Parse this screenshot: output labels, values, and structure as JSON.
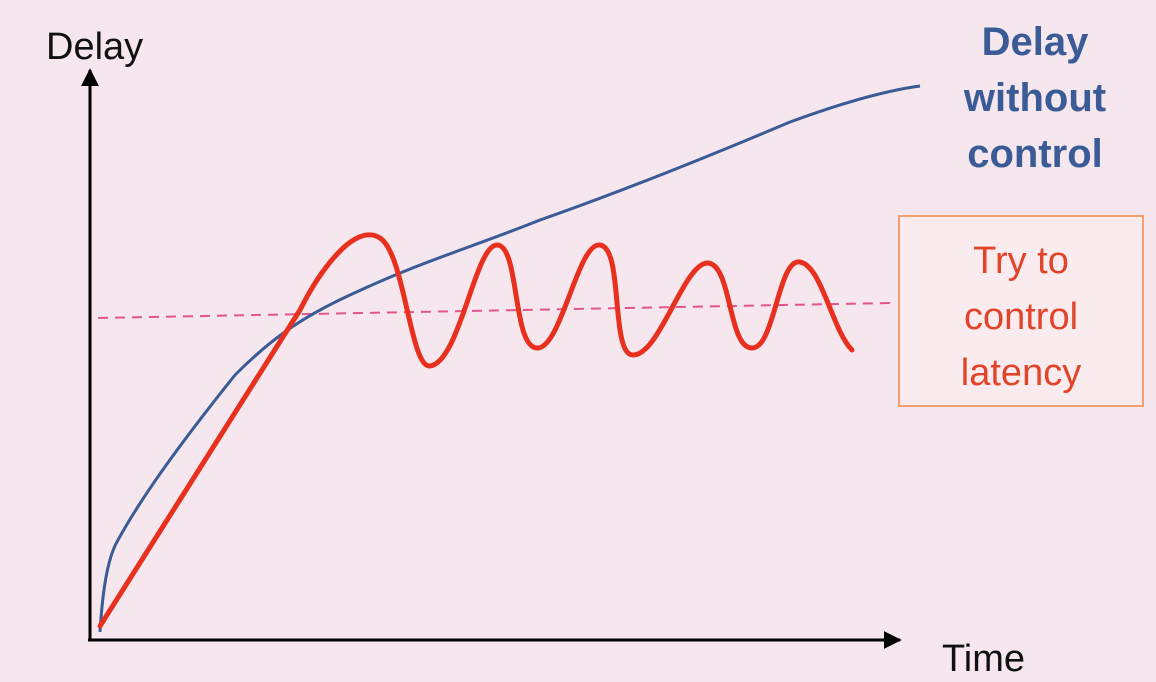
{
  "axes": {
    "y_label": "Delay",
    "x_label": "Time"
  },
  "curves": {
    "without_control": {
      "label_lines": [
        "Delay",
        "without",
        "control"
      ],
      "color": "#3a5b95"
    },
    "with_control": {
      "color": "#e8301e"
    },
    "target_line": {
      "color": "#e0558a",
      "style": "dashed"
    }
  },
  "annotation": {
    "lines": [
      "Try to",
      "control",
      "latency"
    ],
    "border_color": "#f4a070",
    "text_color": "#e2442a"
  },
  "colors": {
    "background": "#f6e6ee",
    "axis": "#000000"
  }
}
